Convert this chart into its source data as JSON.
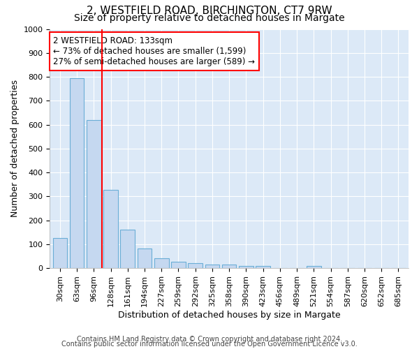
{
  "title": "2, WESTFIELD ROAD, BIRCHINGTON, CT7 9RW",
  "subtitle": "Size of property relative to detached houses in Margate",
  "xlabel": "Distribution of detached houses by size in Margate",
  "ylabel": "Number of detached properties",
  "categories": [
    "30sqm",
    "63sqm",
    "96sqm",
    "128sqm",
    "161sqm",
    "194sqm",
    "227sqm",
    "259sqm",
    "292sqm",
    "325sqm",
    "358sqm",
    "390sqm",
    "423sqm",
    "456sqm",
    "489sqm",
    "521sqm",
    "554sqm",
    "587sqm",
    "620sqm",
    "652sqm",
    "685sqm"
  ],
  "values": [
    125,
    795,
    620,
    328,
    162,
    82,
    40,
    28,
    22,
    16,
    14,
    10,
    8,
    0,
    0,
    8,
    0,
    0,
    0,
    0,
    0
  ],
  "bar_color": "#c5d8f0",
  "bar_edge_color": "#6aaed6",
  "vline_x_index": 3,
  "vline_color": "red",
  "annotation_text": "2 WESTFIELD ROAD: 133sqm\n← 73% of detached houses are smaller (1,599)\n27% of semi-detached houses are larger (589) →",
  "annotation_box_facecolor": "white",
  "annotation_box_edgecolor": "red",
  "ylim": [
    0,
    1000
  ],
  "yticks": [
    0,
    100,
    200,
    300,
    400,
    500,
    600,
    700,
    800,
    900,
    1000
  ],
  "bg_color": "#ffffff",
  "plot_bg_color": "#dce9f7",
  "footer1": "Contains HM Land Registry data © Crown copyright and database right 2024.",
  "footer2": "Contains public sector information licensed under the Open Government Licence v3.0.",
  "title_fontsize": 11,
  "subtitle_fontsize": 10,
  "axis_label_fontsize": 9,
  "tick_fontsize": 8,
  "annotation_fontsize": 8.5,
  "footer_fontsize": 7
}
